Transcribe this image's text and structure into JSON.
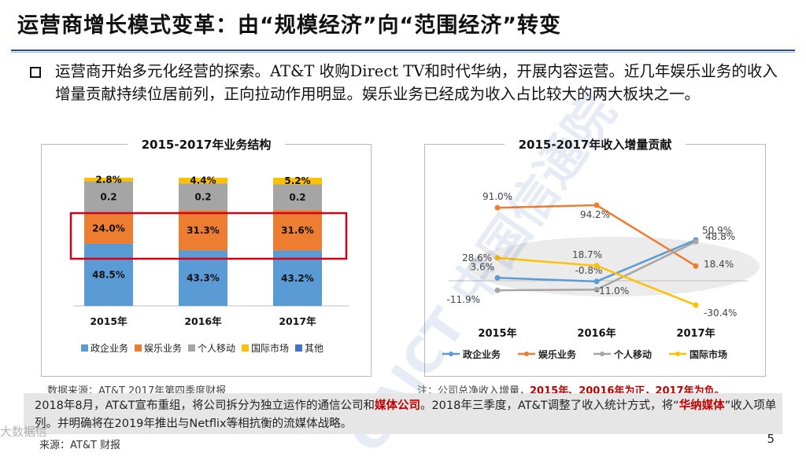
{
  "slide": {
    "title": "运营商增长模式变革：由“规模经济”向“范围经济”转变",
    "paragraph": "运营商开始多元化经营的探索。AT&T 收购Direct TV和时代华纳，开展内容运营。近几年娱乐业务的收入增量贡献持续位居前列，正向拉动作用明显。娱乐业务已经成为收入占比较大的两大板块之一。",
    "left_panel_title": "2015-2017年业务结构",
    "right_panel_title": "2015-2017年收入增量贡献",
    "note_left": "数据来源：AT&T 2017年第四季度财报",
    "note_right_prefix": "注：公司总净收入增量，",
    "note_right_red": "2015年、20016年为正，2017年为负。",
    "bottom_text_1": "2018年8月，AT&T宣布重组，将公司拆分为独立运作的通信公司和",
    "bottom_text_1_red": "媒体公司",
    "bottom_text_2": "。2018年三季度，AT&T调整了收入统计方式，将“",
    "bottom_text_2_red": "华纳媒体",
    "bottom_text_3": "”收入项单列。并明确将在2019年推出与Netflix等相抗衡的流媒体战略。",
    "source": "来源：AT&T 财报",
    "page_number": "5",
    "watermark": "CAICT 中国信通院",
    "watermark_corner": "大数据信"
  },
  "chart_data": [
    {
      "type": "bar",
      "stacked": true,
      "title": "2015-2017年业务结构",
      "categories": [
        "2015年",
        "2016年",
        "2017年"
      ],
      "series": [
        {
          "name": "政企业务",
          "color": "#5b9bd5",
          "values": [
            48.5,
            43.3,
            43.2
          ],
          "labels": [
            "48.5%",
            "43.3%",
            "43.2%"
          ]
        },
        {
          "name": "娱乐业务",
          "color": "#ed7d31",
          "values": [
            24.0,
            31.3,
            31.6
          ],
          "labels": [
            "24.0%",
            "31.3%",
            "31.6%"
          ]
        },
        {
          "name": "个人移动",
          "color": "#a5a5a5",
          "values": [
            24.7,
            21.0,
            20.0
          ],
          "labels": [
            "0.2",
            "0.2",
            "0.2"
          ]
        },
        {
          "name": "国际市场",
          "color": "#ffc000",
          "values": [
            2.8,
            4.4,
            5.2
          ],
          "labels": [
            "2.8%",
            "4.4%",
            "5.2%"
          ]
        },
        {
          "name": "其他",
          "color": "#4472c4",
          "values": [
            0,
            0,
            0
          ],
          "labels": [
            "",
            "",
            ""
          ]
        }
      ],
      "ylim": [
        0,
        100
      ],
      "legend": "bottom"
    },
    {
      "type": "line",
      "title": "2015-2017年收入增量贡献",
      "categories": [
        "2015年",
        "2016年",
        "2017年"
      ],
      "series": [
        {
          "name": "政企业务",
          "color": "#5b9bd5",
          "values": [
            3.6,
            -0.8,
            50.9
          ],
          "labels": [
            "3.6%",
            "-0.8%",
            "50.9%"
          ]
        },
        {
          "name": "娱乐业务",
          "color": "#ed7d31",
          "values": [
            91.0,
            94.2,
            18.4
          ],
          "labels": [
            "91.0%",
            "94.2%",
            "18.4%"
          ]
        },
        {
          "name": "个人移动",
          "color": "#a5a5a5",
          "values": [
            -11.9,
            -11.0,
            48.8
          ],
          "labels": [
            "-11.9%",
            "-11.0%",
            "48.8%"
          ]
        },
        {
          "name": "国际市场",
          "color": "#ffc000",
          "values": [
            28.6,
            18.7,
            -30.4
          ],
          "labels": [
            "28.6%",
            "18.7%",
            "-30.4%"
          ]
        }
      ],
      "ylim": [
        -40,
        100
      ],
      "legend": "bottom"
    }
  ]
}
